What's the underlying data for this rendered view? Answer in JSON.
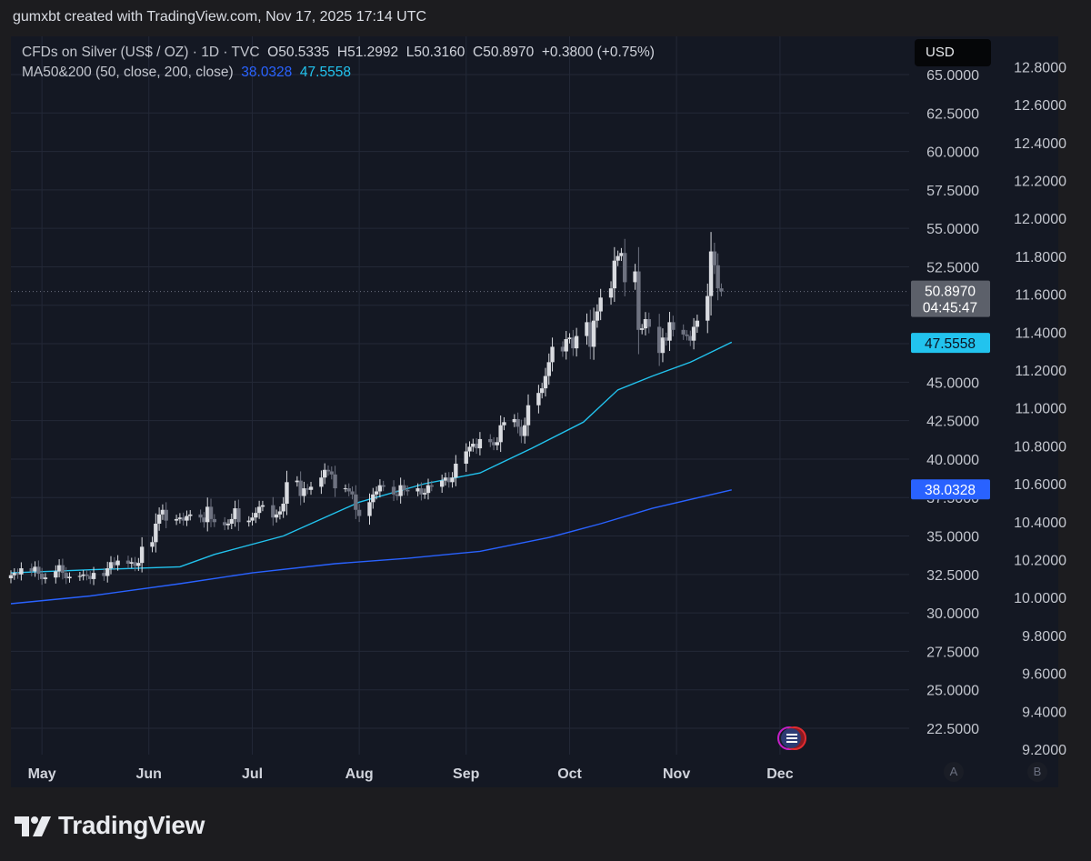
{
  "attribution": "gumxbt created with TradingView.com, Nov 17, 2025 17:14 UTC",
  "legend": {
    "symbol": "CFDs on Silver (US$ / OZ) · 1D · TVC",
    "ohlc": {
      "open": "O50.5335",
      "high": "H51.2992",
      "low": "L50.3160",
      "close": "C50.8970",
      "change": "+0.3800 (+0.75%)"
    },
    "ma_label": "MA50&200 (50, close, 200, close)",
    "ma_values": [
      "38.0328",
      "47.5558"
    ]
  },
  "currency_button": "USD",
  "scale_buttons": [
    "A",
    "B"
  ],
  "logo_text": "TradingView",
  "colors": {
    "background": "#141823",
    "candle_up": "#d9dbe0",
    "candle_down": "#6e7280",
    "ma200": "#2962ff",
    "ma50": "#22c3ee",
    "last_price_badge": "#5c606a",
    "grid": "#232837"
  },
  "chart_data": {
    "type": "candlestick",
    "symbol": "CFDs on Silver (US$ / OZ)",
    "interval": "1D",
    "x_ticks": [
      "May",
      "Jun",
      "Jul",
      "Aug",
      "Sep",
      "Oct",
      "Nov",
      "Dec"
    ],
    "x_range": [
      "2025-04-22",
      "2025-12-20"
    ],
    "y_ticks_left": [
      "22.5000",
      "25.0000",
      "27.5000",
      "30.0000",
      "32.5000",
      "35.0000",
      "37.5000",
      "40.0000",
      "42.5000",
      "45.0000",
      "47.5000",
      "50.0000",
      "52.5000",
      "55.0000",
      "57.5000",
      "60.0000",
      "62.5000",
      "65.0000"
    ],
    "y_ticks_right": [
      "9.2000",
      "9.4000",
      "9.6000",
      "9.8000",
      "10.0000",
      "10.2000",
      "10.4000",
      "10.6000",
      "10.8000",
      "11.0000",
      "11.2000",
      "11.4000",
      "11.6000",
      "11.8000",
      "12.0000",
      "12.2000",
      "12.4000",
      "12.6000",
      "12.8000"
    ],
    "ylim": [
      21.0,
      65.0
    ],
    "last_price": "50.8970",
    "countdown": "04:45:47",
    "ma_badges": [
      {
        "name": "MA200",
        "value": "38.0328"
      },
      {
        "name": "MA50",
        "value": "47.5558"
      }
    ],
    "series": [
      {
        "name": "MA200",
        "x": [
          "2025-04-22",
          "2025-05-15",
          "2025-06-10",
          "2025-07-01",
          "2025-07-25",
          "2025-08-15",
          "2025-09-05",
          "2025-09-25",
          "2025-10-10",
          "2025-10-25",
          "2025-11-17"
        ],
        "values": [
          30.6,
          31.1,
          31.9,
          32.6,
          33.2,
          33.55,
          34.0,
          34.9,
          35.8,
          36.8,
          38.0
        ]
      },
      {
        "name": "MA50",
        "x": [
          "2025-04-22",
          "2025-05-15",
          "2025-06-10",
          "2025-06-20",
          "2025-07-10",
          "2025-08-01",
          "2025-08-20",
          "2025-09-05",
          "2025-09-20",
          "2025-10-05",
          "2025-10-15",
          "2025-10-25",
          "2025-11-05",
          "2025-11-17"
        ],
        "values": [
          32.6,
          32.8,
          33.0,
          33.8,
          35.0,
          37.2,
          38.4,
          39.1,
          40.7,
          42.4,
          44.5,
          45.4,
          46.3,
          47.6
        ]
      }
    ],
    "ohlc_dates": [
      "2025-04-22",
      "2025-04-23",
      "2025-04-24",
      "2025-04-25",
      "2025-04-28",
      "2025-04-29",
      "2025-04-30",
      "2025-05-01",
      "2025-05-02",
      "2025-05-05",
      "2025-05-06",
      "2025-05-07",
      "2025-05-08",
      "2025-05-09",
      "2025-05-12",
      "2025-05-13",
      "2025-05-14",
      "2025-05-15",
      "2025-05-16",
      "2025-05-19",
      "2025-05-20",
      "2025-05-21",
      "2025-05-22",
      "2025-05-23",
      "2025-05-26",
      "2025-05-27",
      "2025-05-28",
      "2025-05-29",
      "2025-05-30",
      "2025-06-02",
      "2025-06-03",
      "2025-06-04",
      "2025-06-05",
      "2025-06-06",
      "2025-06-09",
      "2025-06-10",
      "2025-06-11",
      "2025-06-12",
      "2025-06-13",
      "2025-06-16",
      "2025-06-17",
      "2025-06-18",
      "2025-06-19",
      "2025-06-20",
      "2025-06-23",
      "2025-06-24",
      "2025-06-25",
      "2025-06-26",
      "2025-06-27",
      "2025-06-30",
      "2025-07-01",
      "2025-07-02",
      "2025-07-03",
      "2025-07-04",
      "2025-07-07",
      "2025-07-08",
      "2025-07-09",
      "2025-07-10",
      "2025-07-11",
      "2025-07-14",
      "2025-07-15",
      "2025-07-16",
      "2025-07-17",
      "2025-07-18",
      "2025-07-21",
      "2025-07-22",
      "2025-07-23",
      "2025-07-24",
      "2025-07-25",
      "2025-07-28",
      "2025-07-29",
      "2025-07-30",
      "2025-07-31",
      "2025-08-01",
      "2025-08-04",
      "2025-08-05",
      "2025-08-06",
      "2025-08-07",
      "2025-08-08",
      "2025-08-11",
      "2025-08-12",
      "2025-08-13",
      "2025-08-14",
      "2025-08-15",
      "2025-08-18",
      "2025-08-19",
      "2025-08-20",
      "2025-08-21",
      "2025-08-22",
      "2025-08-25",
      "2025-08-26",
      "2025-08-27",
      "2025-08-28",
      "2025-08-29",
      "2025-09-01",
      "2025-09-02",
      "2025-09-03",
      "2025-09-04",
      "2025-09-05",
      "2025-09-08",
      "2025-09-09",
      "2025-09-10",
      "2025-09-11",
      "2025-09-12",
      "2025-09-15",
      "2025-09-16",
      "2025-09-17",
      "2025-09-18",
      "2025-09-19",
      "2025-09-22",
      "2025-09-23",
      "2025-09-24",
      "2025-09-25",
      "2025-09-26",
      "2025-09-29",
      "2025-09-30",
      "2025-10-01",
      "2025-10-02",
      "2025-10-03",
      "2025-10-06",
      "2025-10-07",
      "2025-10-08",
      "2025-10-09",
      "2025-10-10",
      "2025-10-13",
      "2025-10-14",
      "2025-10-15",
      "2025-10-16",
      "2025-10-17",
      "2025-10-20",
      "2025-10-21",
      "2025-10-22",
      "2025-10-23",
      "2025-10-24",
      "2025-10-27",
      "2025-10-28",
      "2025-10-29",
      "2025-10-30",
      "2025-10-31",
      "2025-11-03",
      "2025-11-04",
      "2025-11-05",
      "2025-11-06",
      "2025-11-07",
      "2025-11-10",
      "2025-11-11",
      "2025-11-12",
      "2025-11-13",
      "2025-11-14",
      "2025-11-17"
    ],
    "ohlc_close": [
      32.45,
      32.6,
      32.5,
      32.9,
      32.7,
      33.0,
      32.55,
      32.2,
      32.3,
      32.7,
      33.1,
      32.6,
      32.25,
      32.35,
      32.4,
      32.5,
      32.4,
      32.2,
      32.6,
      32.4,
      32.9,
      33.3,
      33.1,
      33.4,
      33.2,
      33.3,
      33.05,
      33.25,
      34.3,
      34.6,
      35.8,
      36.4,
      36.7,
      36.0,
      36.1,
      36.2,
      36.0,
      36.3,
      36.4,
      36.2,
      35.9,
      36.9,
      36.1,
      35.9,
      35.7,
      35.8,
      36.1,
      36.8,
      35.9,
      36.0,
      36.2,
      36.5,
      36.9,
      37.0,
      36.2,
      36.4,
      36.6,
      37.1,
      38.5,
      38.6,
      37.6,
      38.1,
      38.0,
      38.2,
      38.8,
      39.3,
      39.2,
      39.0,
      38.1,
      38.1,
      37.9,
      37.7,
      36.7,
      36.3,
      37.2,
      37.7,
      37.9,
      38.3,
      38.2,
      37.7,
      37.6,
      38.3,
      38.0,
      37.9,
      38.1,
      37.7,
      37.8,
      38.3,
      38.2,
      38.6,
      38.8,
      38.5,
      38.8,
      39.7,
      40.5,
      40.8,
      41.0,
      40.7,
      41.3,
      41.1,
      40.9,
      41.1,
      42.2,
      42.4,
      42.6,
      42.1,
      41.5,
      42.2,
      43.5,
      44.3,
      44.6,
      45.4,
      46.3,
      47.3,
      47.0,
      47.8,
      47.9,
      47.2,
      48.0,
      48.9,
      47.3,
      49.0,
      49.6,
      50.5,
      51.1,
      52.9,
      53.2,
      53.4,
      51.5,
      52.2,
      48.4,
      48.5,
      49.1,
      48.6,
      46.9,
      47.9,
      47.7,
      48.9,
      48.4,
      48.1,
      48.0,
      47.7,
      48.6,
      49.0,
      50.6,
      53.5,
      52.6,
      51.1,
      50.9
    ]
  }
}
